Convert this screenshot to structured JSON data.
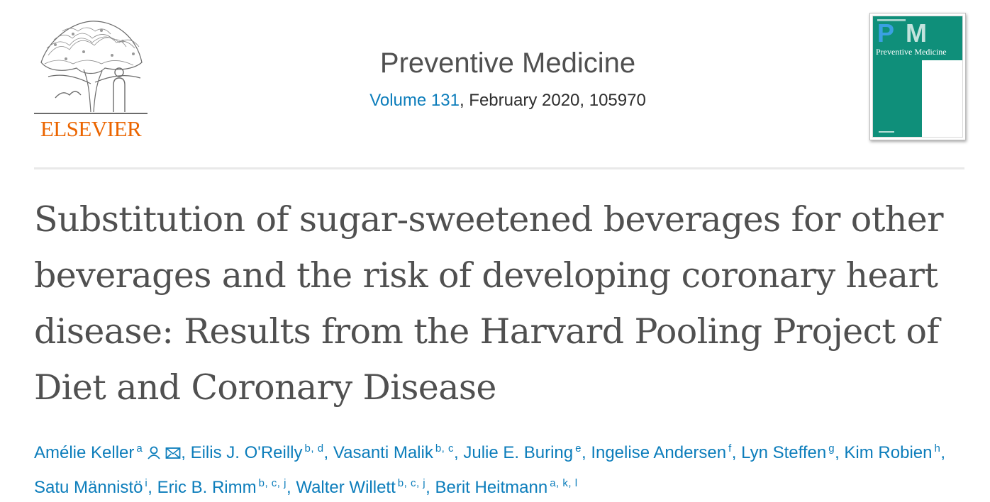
{
  "header": {
    "publisher": "ELSEVIER",
    "journal": "Preventive Medicine",
    "volume_link": "Volume 131",
    "issue_rest": ", February 2020, 105970",
    "cover": {
      "title": "Preventive Medicine",
      "letters_p": "P",
      "letters_m": "M"
    }
  },
  "article": {
    "title": "Substitution of sugar-sweetened beverages for other beverages and the risk of developing coronary heart disease: Results from the Harvard Pooling Project of Diet and Coronary Disease",
    "authors": [
      {
        "name": "Amélie Keller",
        "sup": "a"
      },
      {
        "name": "Eilis J. O'Reilly",
        "sup": "b, d"
      },
      {
        "name": "Vasanti Malik",
        "sup": "b, c"
      },
      {
        "name": "Julie E. Buring",
        "sup": "e"
      },
      {
        "name": "Ingelise Andersen",
        "sup": "f"
      },
      {
        "name": "Lyn Steffen",
        "sup": "g"
      },
      {
        "name": "Kim Robien",
        "sup": "h"
      },
      {
        "name": "Satu Männistö",
        "sup": "i"
      },
      {
        "name": "Eric B. Rimm",
        "sup": "b, c, j"
      },
      {
        "name": "Walter Willett",
        "sup": "b, c, j"
      },
      {
        "name": "Berit Heitmann",
        "sup": "a, k, l"
      }
    ],
    "separator": ", ",
    "icons": [
      "person-icon",
      "envelope-icon"
    ]
  },
  "colors": {
    "link": "#0c7dbb",
    "publisher": "#eb6500",
    "text": "#505050",
    "cover_green": "#0f8f7a"
  }
}
